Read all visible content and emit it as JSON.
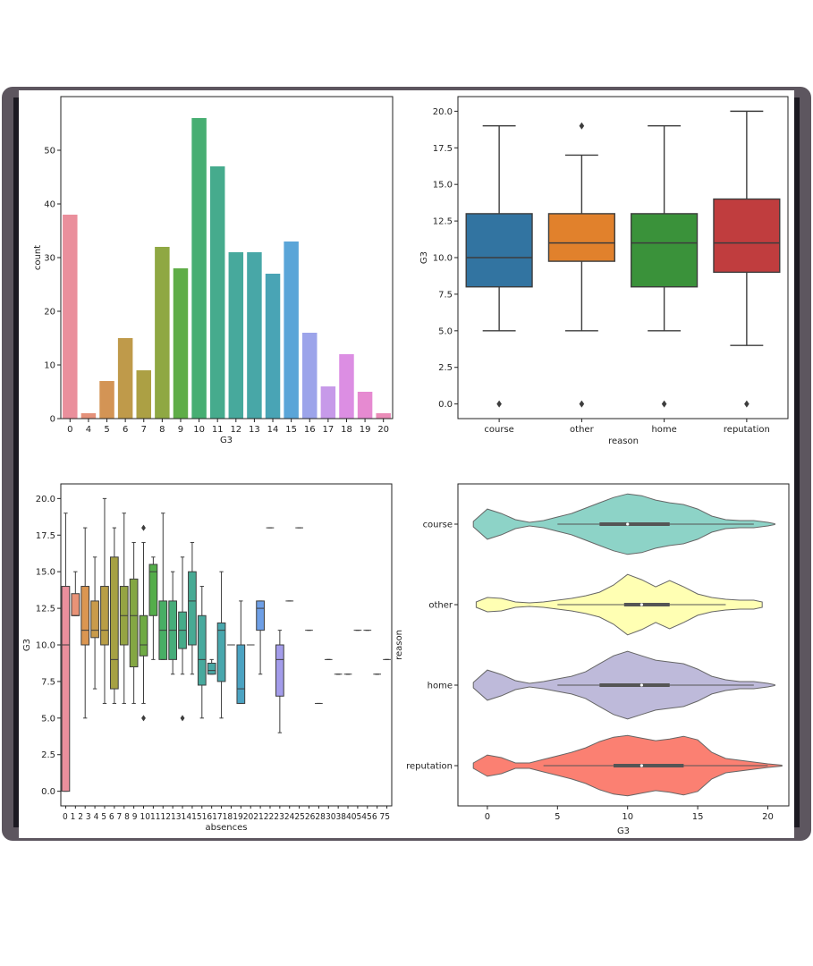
{
  "chart_data": [
    {
      "type": "bar",
      "title": "",
      "xlabel": "G3",
      "ylabel": "count",
      "ylim": [
        0,
        60
      ],
      "yticks": [
        0,
        10,
        20,
        30,
        40,
        50
      ],
      "categories": [
        "0",
        "4",
        "5",
        "6",
        "7",
        "8",
        "9",
        "10",
        "11",
        "12",
        "13",
        "14",
        "15",
        "16",
        "17",
        "18",
        "19",
        "20"
      ],
      "values": [
        38,
        1,
        7,
        15,
        9,
        32,
        28,
        56,
        47,
        31,
        31,
        27,
        33,
        16,
        6,
        12,
        5,
        1
      ],
      "colors": [
        "#ea8f9c",
        "#e4917a",
        "#d39455",
        "#bf9a4a",
        "#aca044",
        "#8fa843",
        "#5fad48",
        "#47ae72",
        "#46ab8d",
        "#47a99c",
        "#48a7a7",
        "#49a4b5",
        "#5aa5d8",
        "#9ca4ea",
        "#c79ae9",
        "#dc8ee3",
        "#e68ad1",
        "#ea8cb8"
      ]
    },
    {
      "type": "box",
      "title": "",
      "xlabel": "reason",
      "ylabel": "G3",
      "ylim": [
        -1,
        21
      ],
      "yticks": [
        "0.0",
        "2.5",
        "5.0",
        "7.5",
        "10.0",
        "12.5",
        "15.0",
        "17.5",
        "20.0"
      ],
      "categories": [
        "course",
        "other",
        "home",
        "reputation"
      ],
      "colors": [
        "#3274a1",
        "#e1812c",
        "#3a923a",
        "#c03d3e"
      ],
      "boxes": [
        {
          "min": 5,
          "q1": 8,
          "median": 10,
          "q3": 13,
          "max": 19,
          "outliers": [
            0
          ]
        },
        {
          "min": 5,
          "q1": 9.75,
          "median": 11,
          "q3": 13,
          "max": 17,
          "outliers": [
            0,
            19
          ]
        },
        {
          "min": 5,
          "q1": 8,
          "median": 11,
          "q3": 13,
          "max": 19,
          "outliers": [
            0
          ]
        },
        {
          "min": 4,
          "q1": 9,
          "median": 11,
          "q3": 14,
          "max": 20,
          "outliers": [
            0
          ]
        }
      ]
    },
    {
      "type": "box",
      "title": "",
      "xlabel": "absences",
      "ylabel": "G3",
      "ylim": [
        -1,
        21
      ],
      "yticks": [
        "0.0",
        "2.5",
        "5.0",
        "7.5",
        "10.0",
        "12.5",
        "15.0",
        "17.5",
        "20.0"
      ],
      "categories": [
        "0",
        "1",
        "2",
        "3",
        "4",
        "5",
        "6",
        "7",
        "8",
        "9",
        "10",
        "11",
        "12",
        "13",
        "14",
        "15",
        "16",
        "17",
        "18",
        "19",
        "20",
        "21",
        "22",
        "23",
        "24",
        "25",
        "26",
        "28",
        "30",
        "38",
        "40",
        "54",
        "56",
        "75"
      ],
      "tick_text": [
        "0 1 2 3 4 5 6 7 8 9 1011121314151617181920212223242526283038405456 75"
      ],
      "colors": [
        "#ea8f9c",
        "#e99377",
        "#db9651",
        "#c99b4a",
        "#b89e46",
        "#a6a143",
        "#95a443",
        "#84a743",
        "#6faa44",
        "#54ad4a",
        "#48ae65",
        "#47ad7a",
        "#46ab89",
        "#47aa94",
        "#47a99d",
        "#48a8a5",
        "#48a7ad",
        "#49a5b6",
        "#4ba3c2",
        "#55a1d4",
        "#6e9fe6",
        "#8a9ee8",
        "#a39cea",
        "#b898ea",
        "#c994e8",
        "#d890e4",
        "#e38cdc",
        "#e78ad2",
        "#ea8ac6",
        "#eb8cba",
        "#ea8fab",
        "#ea8f9c",
        "#e9909a",
        "#e99298"
      ],
      "boxes": [
        {
          "min": 0,
          "q1": 0,
          "median": 10,
          "q3": 14,
          "max": 19,
          "outliers": []
        },
        {
          "min": 12,
          "q1": 12,
          "median": 12,
          "q3": 13.5,
          "max": 15,
          "outliers": []
        },
        {
          "min": 5,
          "q1": 10,
          "median": 11,
          "q3": 14,
          "max": 18,
          "outliers": []
        },
        {
          "min": 7,
          "q1": 10.5,
          "median": 11,
          "q3": 13,
          "max": 16,
          "outliers": []
        },
        {
          "min": 6,
          "q1": 10,
          "median": 11,
          "q3": 14,
          "max": 20,
          "outliers": []
        },
        {
          "min": 6,
          "q1": 7,
          "median": 9,
          "q3": 16,
          "max": 18,
          "outliers": []
        },
        {
          "min": 6,
          "q1": 10,
          "median": 12,
          "q3": 14,
          "max": 19,
          "outliers": []
        },
        {
          "min": 6,
          "q1": 8.5,
          "median": 12,
          "q3": 14.5,
          "max": 17,
          "outliers": []
        },
        {
          "min": 6,
          "q1": 9.25,
          "median": 10,
          "q3": 12,
          "max": 17,
          "outliers": [
            5,
            18
          ]
        },
        {
          "min": 9,
          "q1": 12,
          "median": 15,
          "q3": 15.5,
          "max": 16,
          "outliers": []
        },
        {
          "min": 9,
          "q1": 9,
          "median": 11,
          "q3": 13,
          "max": 19,
          "outliers": []
        },
        {
          "min": 8,
          "q1": 9,
          "median": 11,
          "q3": 13,
          "max": 15,
          "outliers": []
        },
        {
          "min": 8,
          "q1": 9.75,
          "median": 11,
          "q3": 12.25,
          "max": 16,
          "outliers": [
            5
          ]
        },
        {
          "min": 8,
          "q1": 10,
          "median": 13,
          "q3": 15,
          "max": 17,
          "outliers": []
        },
        {
          "min": 5,
          "q1": 7.25,
          "median": 9,
          "q3": 12,
          "max": 14,
          "outliers": []
        },
        {
          "min": 8,
          "q1": 8,
          "median": 8.25,
          "q3": 8.75,
          "max": 9,
          "outliers": []
        },
        {
          "min": 5,
          "q1": 7.5,
          "median": 11,
          "q3": 11.5,
          "max": 15,
          "outliers": []
        },
        {
          "min": 10,
          "q1": 10,
          "median": 10,
          "q3": 10,
          "max": 10,
          "outliers": []
        },
        {
          "min": 6,
          "q1": 6,
          "median": 7,
          "q3": 10,
          "max": 13,
          "outliers": []
        },
        {
          "min": 10,
          "q1": 10,
          "median": 10,
          "q3": 10,
          "max": 10,
          "outliers": []
        },
        {
          "min": 8,
          "q1": 11,
          "median": 12.5,
          "q3": 13,
          "max": 13,
          "outliers": []
        },
        {
          "min": 18,
          "q1": 18,
          "median": 18,
          "q3": 18,
          "max": 18,
          "outliers": []
        },
        {
          "min": 4,
          "q1": 6.5,
          "median": 9,
          "q3": 10,
          "max": 11,
          "outliers": []
        },
        {
          "min": 13,
          "q1": 13,
          "median": 13,
          "q3": 13,
          "max": 13,
          "outliers": []
        },
        {
          "min": 18,
          "q1": 18,
          "median": 18,
          "q3": 18,
          "max": 18,
          "outliers": []
        },
        {
          "min": 11,
          "q1": 11,
          "median": 11,
          "q3": 11,
          "max": 11,
          "outliers": []
        },
        {
          "min": 6,
          "q1": 6,
          "median": 6,
          "q3": 6,
          "max": 6,
          "outliers": []
        },
        {
          "min": 9,
          "q1": 9,
          "median": 9,
          "q3": 9,
          "max": 9,
          "outliers": []
        },
        {
          "min": 8,
          "q1": 8,
          "median": 8,
          "q3": 8,
          "max": 8,
          "outliers": []
        },
        {
          "min": 8,
          "q1": 8,
          "median": 8,
          "q3": 8,
          "max": 8,
          "outliers": []
        },
        {
          "min": 11,
          "q1": 11,
          "median": 11,
          "q3": 11,
          "max": 11,
          "outliers": []
        },
        {
          "min": 11,
          "q1": 11,
          "median": 11,
          "q3": 11,
          "max": 11,
          "outliers": []
        },
        {
          "min": 8,
          "q1": 8,
          "median": 8,
          "q3": 8,
          "max": 8,
          "outliers": []
        },
        {
          "min": 9,
          "q1": 9,
          "median": 9,
          "q3": 9,
          "max": 9,
          "outliers": []
        }
      ]
    },
    {
      "type": "violin",
      "title": "",
      "xlabel": "G3",
      "ylabel": "reason",
      "xlim": [
        -2.1,
        21.5
      ],
      "xticks": [
        "0",
        "5",
        "10",
        "15",
        "20"
      ],
      "categories": [
        "course",
        "other",
        "home",
        "reputation"
      ],
      "colors": [
        "#8dd3c7",
        "#ffffb3",
        "#bebada",
        "#fb8072"
      ],
      "violins": [
        {
          "profile": [
            [
              -1,
              0.03
            ],
            [
              0,
              0.17
            ],
            [
              1,
              0.12
            ],
            [
              2,
              0.05
            ],
            [
              3,
              0.02
            ],
            [
              4,
              0.04
            ],
            [
              5,
              0.08
            ],
            [
              6,
              0.12
            ],
            [
              7,
              0.18
            ],
            [
              8,
              0.24
            ],
            [
              9,
              0.3
            ],
            [
              10,
              0.34
            ],
            [
              11,
              0.32
            ],
            [
              12,
              0.27
            ],
            [
              13,
              0.24
            ],
            [
              14,
              0.22
            ],
            [
              15,
              0.17
            ],
            [
              16,
              0.09
            ],
            [
              17,
              0.05
            ],
            [
              18,
              0.04
            ],
            [
              19,
              0.04
            ],
            [
              20,
              0.02
            ],
            [
              20.5,
              0.005
            ]
          ],
          "q1": 8,
          "median": 10,
          "q3": 13,
          "wmin": 5,
          "wmax": 19
        },
        {
          "profile": [
            [
              -0.8,
              0.03
            ],
            [
              0,
              0.08
            ],
            [
              1,
              0.07
            ],
            [
              2,
              0.03
            ],
            [
              3,
              0.02
            ],
            [
              4,
              0.03
            ],
            [
              5,
              0.05
            ],
            [
              6,
              0.07
            ],
            [
              7,
              0.1
            ],
            [
              8,
              0.14
            ],
            [
              9,
              0.22
            ],
            [
              10,
              0.34
            ],
            [
              11,
              0.28
            ],
            [
              12,
              0.2
            ],
            [
              13,
              0.27
            ],
            [
              14,
              0.2
            ],
            [
              15,
              0.12
            ],
            [
              16,
              0.08
            ],
            [
              17,
              0.06
            ],
            [
              18,
              0.05
            ],
            [
              19,
              0.05
            ],
            [
              19.6,
              0.03
            ]
          ],
          "q1": 9.75,
          "median": 11,
          "q3": 13,
          "wmin": 5,
          "wmax": 17
        },
        {
          "profile": [
            [
              -1,
              0.03
            ],
            [
              0,
              0.17
            ],
            [
              1,
              0.12
            ],
            [
              2,
              0.05
            ],
            [
              3,
              0.02
            ],
            [
              4,
              0.04
            ],
            [
              5,
              0.07
            ],
            [
              6,
              0.1
            ],
            [
              7,
              0.15
            ],
            [
              8,
              0.24
            ],
            [
              9,
              0.33
            ],
            [
              10,
              0.38
            ],
            [
              11,
              0.33
            ],
            [
              12,
              0.28
            ],
            [
              13,
              0.26
            ],
            [
              14,
              0.24
            ],
            [
              15,
              0.18
            ],
            [
              16,
              0.1
            ],
            [
              17,
              0.06
            ],
            [
              18,
              0.04
            ],
            [
              19,
              0.04
            ],
            [
              20,
              0.02
            ],
            [
              20.5,
              0.005
            ]
          ],
          "q1": 8,
          "median": 11,
          "q3": 13,
          "wmin": 5,
          "wmax": 19
        },
        {
          "profile": [
            [
              -1,
              0.03
            ],
            [
              0,
              0.12
            ],
            [
              1,
              0.09
            ],
            [
              2,
              0.03
            ],
            [
              3,
              0.03
            ],
            [
              4,
              0.07
            ],
            [
              5,
              0.11
            ],
            [
              6,
              0.15
            ],
            [
              7,
              0.2
            ],
            [
              8,
              0.27
            ],
            [
              9,
              0.32
            ],
            [
              10,
              0.34
            ],
            [
              11,
              0.31
            ],
            [
              12,
              0.28
            ],
            [
              13,
              0.3
            ],
            [
              14,
              0.33
            ],
            [
              15,
              0.29
            ],
            [
              16,
              0.15
            ],
            [
              17,
              0.08
            ],
            [
              18,
              0.06
            ],
            [
              19,
              0.04
            ],
            [
              20,
              0.02
            ],
            [
              21,
              0.005
            ]
          ],
          "q1": 9,
          "median": 11,
          "q3": 14,
          "wmin": 4,
          "wmax": 20
        }
      ]
    }
  ]
}
